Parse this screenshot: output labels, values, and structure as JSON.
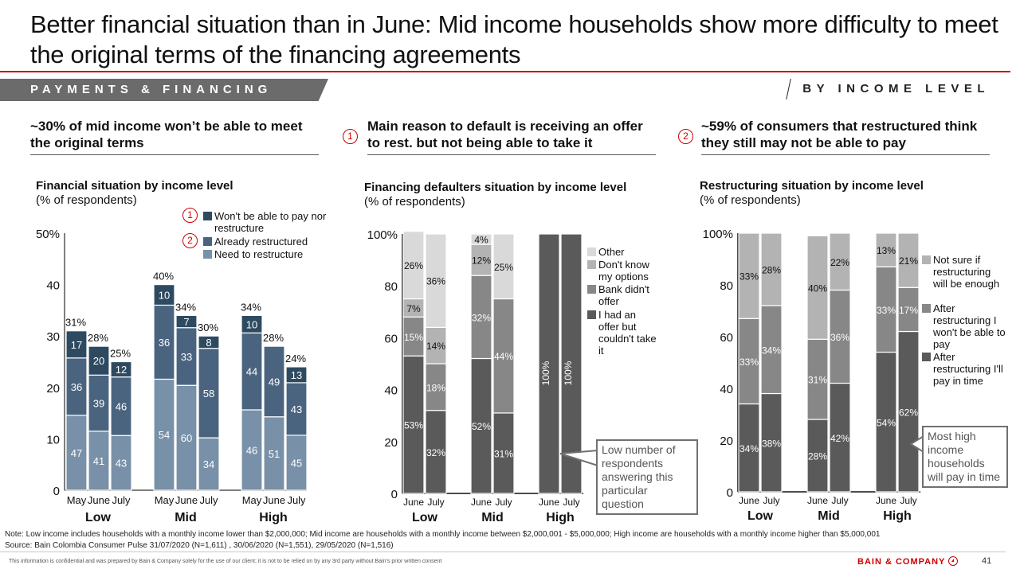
{
  "header": {
    "title": "Better financial situation than in June: Mid income households show more difficulty to meet the original terms of the financing agreements",
    "section_tab": "PAYMENTS & FINANCING",
    "section_right": "BY INCOME LEVEL"
  },
  "panels": [
    {
      "headline": "~30% of mid income won’t be able to meet the original terms",
      "marker": ""
    },
    {
      "headline": "Main reason to default is receiving an offer to rest. but not being able to take it",
      "marker": "1"
    },
    {
      "headline": "~59% of consumers that restructured think they still may not be able to pay",
      "marker": "2"
    }
  ],
  "colors": {
    "accent_red": "#cc0000",
    "c1_wont_pay": "#2e4a60",
    "c1_restructured": "#4a6480",
    "c1_need": "#7890a8",
    "c2_other": "#d9d9d9",
    "c2_dont_know": "#b3b3b3",
    "c2_bank": "#878787",
    "c2_had_offer": "#5a5a5a",
    "c3_not_sure": "#b3b3b3",
    "c3_wont_pay": "#878787",
    "c3_pay_in_time": "#5a5a5a"
  },
  "chart_data": [
    {
      "type": "bar",
      "stacked": true,
      "title": "Financial situation by income level",
      "subtitle": "(% of respondents)",
      "ylabel": "",
      "ylim": [
        0,
        50
      ],
      "yticks": [
        "0",
        "10",
        "20",
        "30",
        "40",
        "50%"
      ],
      "groups": [
        "Low",
        "Mid",
        "High"
      ],
      "categories": [
        "May",
        "June",
        "July"
      ],
      "legend": [
        {
          "marker": "1",
          "label": "Won't be able to pay nor restructure",
          "color_key": "c1_wont_pay"
        },
        {
          "marker": "2",
          "label": "Already restructured",
          "color_key": "c1_restructured"
        },
        {
          "marker": "",
          "label": "Need to restructure",
          "color_key": "c1_need"
        }
      ],
      "bars": [
        {
          "group": "Low",
          "period": "May",
          "total": 31,
          "total_label": "31%",
          "segments": [
            47,
            36,
            17
          ]
        },
        {
          "group": "Low",
          "period": "June",
          "total": 28,
          "total_label": "28%",
          "segments": [
            41,
            39,
            20
          ]
        },
        {
          "group": "Low",
          "period": "July",
          "total": 25,
          "total_label": "25%",
          "segments": [
            43,
            46,
            12
          ]
        },
        {
          "group": "Mid",
          "period": "May",
          "total": 40,
          "total_label": "40%",
          "segments": [
            54,
            36,
            10
          ]
        },
        {
          "group": "Mid",
          "period": "June",
          "total": 34,
          "total_label": "34%",
          "segments": [
            60,
            33,
            7
          ]
        },
        {
          "group": "Mid",
          "period": "July",
          "total": 30,
          "total_label": "30%",
          "segments": [
            34,
            58,
            8
          ]
        },
        {
          "group": "High",
          "period": "May",
          "total": 34,
          "total_label": "34%",
          "segments": [
            46,
            44,
            10
          ]
        },
        {
          "group": "High",
          "period": "June",
          "total": 28,
          "total_label": "28%",
          "segments": [
            51,
            49,
            0
          ]
        },
        {
          "group": "High",
          "period": "July",
          "total": 24,
          "total_label": "24%",
          "segments": [
            45,
            43,
            13
          ]
        }
      ],
      "segment_order": [
        "Need to restructure",
        "Already restructured",
        "Won't be able to pay nor restructure"
      ]
    },
    {
      "type": "bar",
      "stacked": true,
      "title": "Financing defaulters situation by income level",
      "subtitle": "(% of respondents)",
      "ylim": [
        0,
        100
      ],
      "yticks": [
        "0",
        "20",
        "40",
        "60",
        "80",
        "100%"
      ],
      "groups": [
        "Low",
        "Mid",
        "High"
      ],
      "categories": [
        "June",
        "July"
      ],
      "legend": [
        {
          "label": "Other",
          "color_key": "c2_other"
        },
        {
          "label": "Don't know my options",
          "color_key": "c2_dont_know"
        },
        {
          "label": "Bank didn't offer",
          "color_key": "c2_bank"
        },
        {
          "label": "I had an offer but couldn't take it",
          "color_key": "c2_had_offer"
        }
      ],
      "segment_order": [
        "I had an offer but couldn't take it",
        "Bank didn't offer",
        "Don't know my options",
        "Other"
      ],
      "bars": [
        {
          "group": "Low",
          "period": "June",
          "segments": [
            53,
            15,
            7,
            26
          ]
        },
        {
          "group": "Low",
          "period": "July",
          "segments": [
            32,
            18,
            14,
            36
          ]
        },
        {
          "group": "Mid",
          "period": "June",
          "segments": [
            52,
            32,
            12,
            4
          ]
        },
        {
          "group": "Mid",
          "period": "July",
          "segments": [
            31,
            44,
            0,
            25
          ]
        },
        {
          "group": "High",
          "period": "June",
          "segments": [
            100,
            0,
            0,
            0
          ]
        },
        {
          "group": "High",
          "period": "July",
          "segments": [
            100,
            0,
            0,
            0
          ]
        }
      ],
      "callout": "Low number of respondents answering this particular question"
    },
    {
      "type": "bar",
      "stacked": true,
      "title": "Restructuring situation by income level",
      "subtitle": "(% of respondents)",
      "ylim": [
        0,
        100
      ],
      "yticks": [
        "0",
        "20",
        "40",
        "60",
        "80",
        "100%"
      ],
      "groups": [
        "Low",
        "Mid",
        "High"
      ],
      "categories": [
        "June",
        "July"
      ],
      "legend": [
        {
          "label": "Not sure if restructuring will be enough",
          "color_key": "c3_not_sure"
        },
        {
          "label": "After restructuring I won't be able to pay",
          "color_key": "c3_wont_pay"
        },
        {
          "label": "After restructuring I'll pay in time",
          "color_key": "c3_pay_in_time"
        }
      ],
      "segment_order": [
        "After restructuring I'll pay in time",
        "After restructuring I won't be able to pay",
        "Not sure if restructuring will be enough"
      ],
      "bars": [
        {
          "group": "Low",
          "period": "June",
          "segments": [
            34,
            33,
            33
          ]
        },
        {
          "group": "Low",
          "period": "July",
          "segments": [
            38,
            34,
            28
          ]
        },
        {
          "group": "Mid",
          "period": "June",
          "segments": [
            28,
            31,
            40
          ]
        },
        {
          "group": "Mid",
          "period": "July",
          "segments": [
            42,
            36,
            22
          ]
        },
        {
          "group": "High",
          "period": "June",
          "segments": [
            54,
            33,
            13
          ]
        },
        {
          "group": "High",
          "period": "July",
          "segments": [
            62,
            17,
            21
          ]
        }
      ],
      "callout": "Most high income households will pay in time"
    }
  ],
  "footer": {
    "note": "Note: Low income includes households with a monthly income lower than $2,000,000; Mid income are households with a monthly income between $2,000,001 - $5,000,000; High income are households with a monthly income higher than $5,000,001",
    "source": "Source: Bain Colombia Consumer Pulse 31/07/2020 (N=1,611) , 30/06/2020 (N=1,551), 29/05/2020 (N=1,516)",
    "confidential": "This information is confidential and was prepared by Bain & Company solely for the use of our client; it is not to be relied on by any 3rd party without Bain's prior written consent",
    "brand": "BAIN & COMPANY",
    "page_number": "41"
  }
}
